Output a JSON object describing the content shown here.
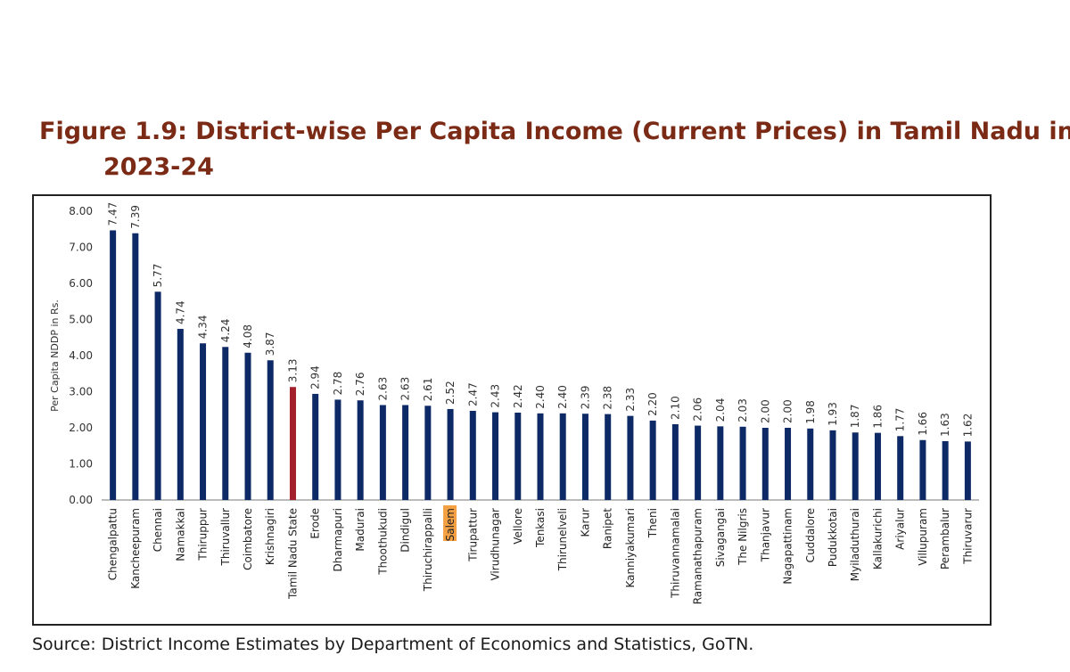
{
  "title_line1": "Figure 1.9: District-wise Per Capita Income (Current Prices) in Tamil Nadu in",
  "title_line2": "2023-24",
  "source": "Source: District Income Estimates by Department of Economics and Statistics, GoTN.",
  "colors": {
    "bar": "#0e2a66",
    "state_bar": "#a31f2b",
    "highlight_bg": "#f4a043",
    "title": "#7b2a16"
  },
  "chart_data": {
    "type": "bar",
    "title": "Figure 1.9: District-wise Per Capita Income (Current Prices) in Tamil Nadu in 2023-24",
    "xlabel": "",
    "ylabel": "Per Capita NDDP in Rs.",
    "ylim": [
      0,
      8
    ],
    "yticks": [
      "0.00",
      "1.00",
      "2.00",
      "3.00",
      "4.00",
      "5.00",
      "6.00",
      "7.00",
      "8.00"
    ],
    "grid": false,
    "categories": [
      "Chengalpattu",
      "Kancheepuram",
      "Chennai",
      "Namakkal",
      "Thiruppur",
      "Thiruvallur",
      "Coimbatore",
      "Krishnagiri",
      "Tamil Nadu State",
      "Erode",
      "Dharmapuri",
      "Madurai",
      "Thoothukudi",
      "Dindigul",
      "Thiruchirappalli",
      "Salem",
      "Tirupattur",
      "Virudhunagar",
      "Vellore",
      "Tenkasi",
      "Thirunelveli",
      "Karur",
      "Ranipet",
      "Kanniyakumari",
      "Theni",
      "Thiruvannamalai",
      "Ramanathapuram",
      "Sivagangai",
      "The Nilgris",
      "Thanjavur",
      "Nagapattinam",
      "Cuddalore",
      "Pudukkotai",
      "Myiladuthurai",
      "Kallakurichi",
      "Ariyalur",
      "Villupuram",
      "Perambalur",
      "Thiruvarur"
    ],
    "values": [
      7.47,
      7.39,
      5.77,
      4.74,
      4.34,
      4.24,
      4.08,
      3.87,
      3.13,
      2.94,
      2.78,
      2.76,
      2.63,
      2.63,
      2.61,
      2.52,
      2.47,
      2.43,
      2.42,
      2.4,
      2.4,
      2.39,
      2.38,
      2.33,
      2.2,
      2.1,
      2.06,
      2.04,
      2.03,
      2.0,
      2.0,
      1.98,
      1.93,
      1.87,
      1.86,
      1.77,
      1.66,
      1.63,
      1.62
    ],
    "value_labels": [
      "7.47",
      "7.39",
      "5.77",
      "4.74",
      "4.34",
      "4.24",
      "4.08",
      "3.87",
      "3.13",
      "2.94",
      "2.78",
      "2.76",
      "2.63",
      "2.63",
      "2.61",
      "2.52",
      "2.47",
      "2.43",
      "2.42",
      "2.40",
      "2.40",
      "2.39",
      "2.38",
      "2.33",
      "2.20",
      "2.10",
      "2.06",
      "2.04",
      "2.03",
      "2.00",
      "2.00",
      "1.98",
      "1.93",
      "1.87",
      "1.86",
      "1.77",
      "1.66",
      "1.63",
      "1.62"
    ],
    "state_category": "Tamil Nadu State",
    "highlight_category": "Salem"
  }
}
